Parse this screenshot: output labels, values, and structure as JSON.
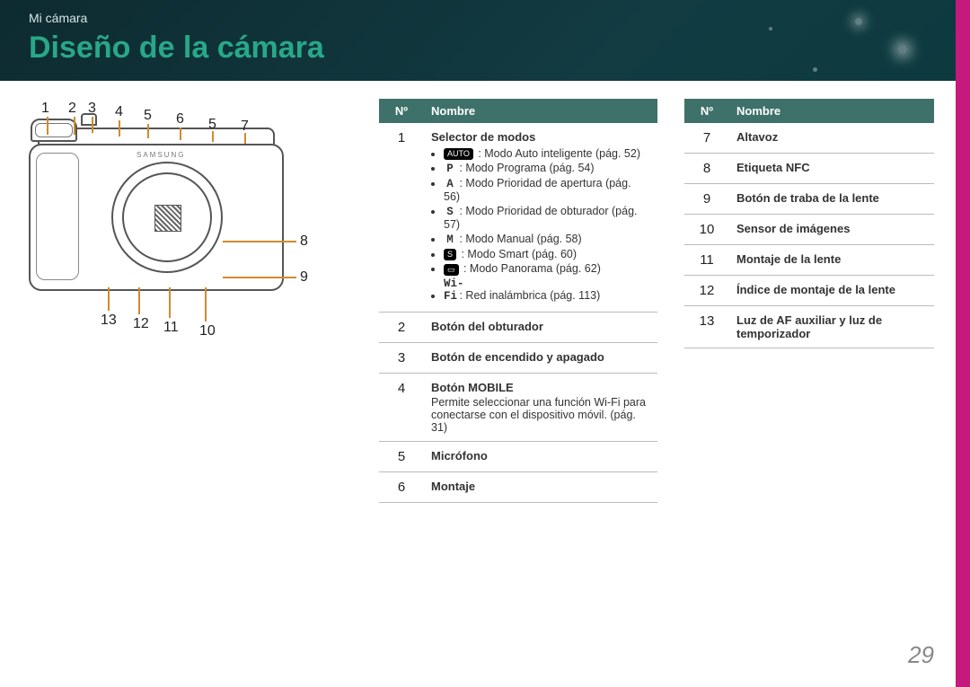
{
  "crumb": "Mi cámara",
  "title": "Diseño de la cámara",
  "pagenum": "29",
  "th_no": "Nº",
  "th_name": "Nombre",
  "t1": [
    {
      "no": "1",
      "title": "Selector de modos",
      "modes": [
        {
          "chip": "AUTO",
          "text": ": Modo Auto inteligente (pág. 52)"
        },
        {
          "mono": "P",
          "text": ": Modo Programa (pág. 54)"
        },
        {
          "mono": "A",
          "text": ": Modo Prioridad de apertura (pág. 56)"
        },
        {
          "mono": "S",
          "text": ": Modo Prioridad de obturador (pág. 57)"
        },
        {
          "mono": "M",
          "text": ": Modo Manual (pág. 58)"
        },
        {
          "chip": "S",
          "text": ": Modo Smart (pág. 60)"
        },
        {
          "chip": "▭",
          "text": ": Modo Panorama (pág. 62)"
        },
        {
          "mono": "Wi-Fi",
          "text": ": Red inalámbrica (pág. 113)"
        }
      ]
    },
    {
      "no": "2",
      "title": "Botón del obturador"
    },
    {
      "no": "3",
      "title": "Botón de encendido y apagado"
    },
    {
      "no": "4",
      "title": "Botón MOBILE",
      "desc": "Permite seleccionar una función Wi-Fi para conectarse con el dispositivo móvil. (pág. 31)"
    },
    {
      "no": "5",
      "title": "Micrófono"
    },
    {
      "no": "6",
      "title": "Montaje"
    }
  ],
  "t2": [
    {
      "no": "7",
      "title": "Altavoz"
    },
    {
      "no": "8",
      "title": "Etiqueta NFC"
    },
    {
      "no": "9",
      "title": "Botón de traba de la lente"
    },
    {
      "no": "10",
      "title": "Sensor de imágenes"
    },
    {
      "no": "11",
      "title": "Montaje de la lente"
    },
    {
      "no": "12",
      "title": "Índice de montaje de la lente"
    },
    {
      "no": "13",
      "title": "Luz de AF auxiliar y luz de temporizador"
    }
  ],
  "callouts": [
    "1",
    "2",
    "3",
    "4",
    "5",
    "6",
    "5",
    "7",
    "8",
    "9",
    "13",
    "12",
    "11",
    "10"
  ]
}
